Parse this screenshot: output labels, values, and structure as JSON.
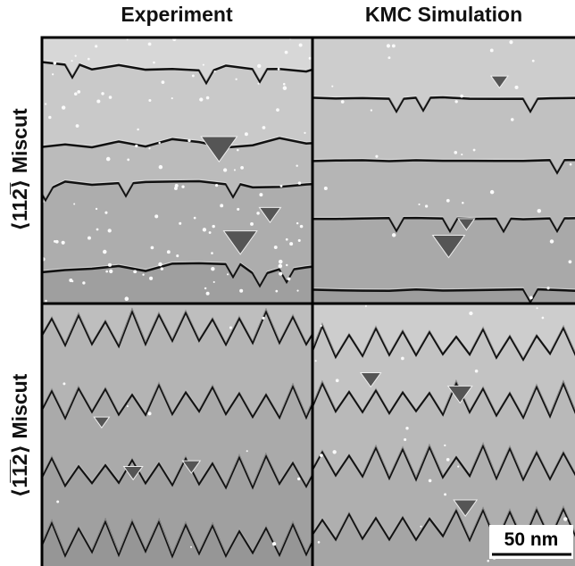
{
  "columns": [
    "Experiment",
    "KMC Simulation"
  ],
  "rows": [
    "⟨112̅⟩ Miscut",
    "⟨1̅1̅2⟩ Miscut"
  ],
  "scale_bar": "50 nm"
}
